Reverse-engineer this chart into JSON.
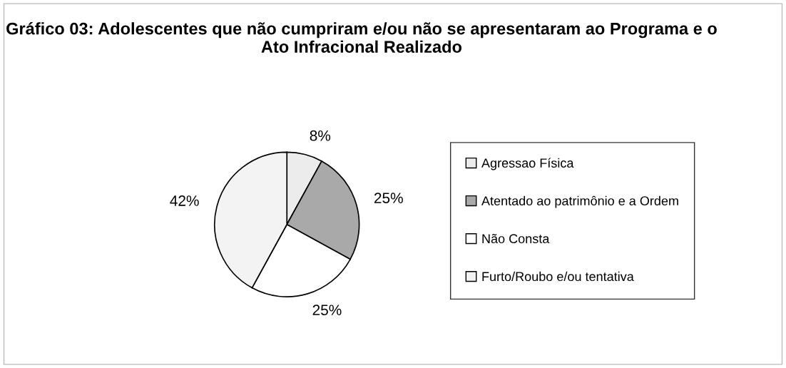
{
  "chart_data": {
    "type": "pie",
    "title": "Gráfico 03: Adolescentes que não cumpriram e/ou não se apresentaram ao Programa e o Ato Infracional Realizado",
    "categories": [
      "Agressao Física",
      "Atentado ao patrimônio e a Ordem",
      "Não Consta",
      "Furto/Roubo e/ou tentativa"
    ],
    "values": [
      8,
      25,
      25,
      42
    ],
    "colors": [
      "#ececec",
      "#a9a9a9",
      "#ffffff",
      "#f3f3f3"
    ],
    "value_labels": [
      "8%",
      "25%",
      "25%",
      "42%"
    ],
    "legend": "right"
  }
}
